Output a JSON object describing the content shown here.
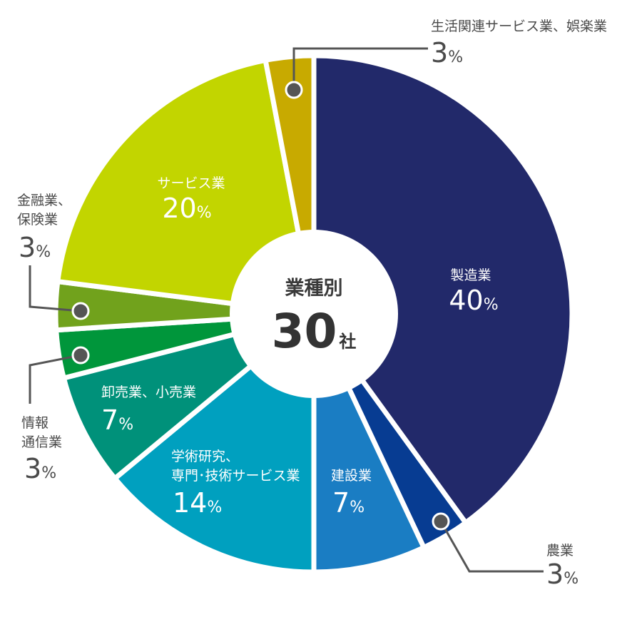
{
  "chart_data": {
    "type": "pie",
    "center": {
      "title": "業種別",
      "value": "30",
      "unit": "社"
    },
    "slices": [
      {
        "name": "製造業",
        "value": 40,
        "color": "#22296a"
      },
      {
        "name": "農業",
        "value": 3,
        "color": "#073c92"
      },
      {
        "name": "建設業",
        "value": 7,
        "color": "#1a7dc3"
      },
      {
        "name": "学術研究、専門・技術サービス業",
        "value": 14,
        "color": "#00a0bf"
      },
      {
        "name": "卸売業、小売業",
        "value": 7,
        "color": "#00917a"
      },
      {
        "name": "情報通信業",
        "value": 3,
        "color": "#00963b"
      },
      {
        "name": "金融業、保険業",
        "value": 3,
        "color": "#71a21c"
      },
      {
        "name": "サービス業",
        "value": 20,
        "color": "#c2d500"
      },
      {
        "name": "生活関連サービス業、娯楽業",
        "value": 3,
        "color": "#c8aa00"
      }
    ]
  },
  "labels": {
    "manufacturing": {
      "line1": "製造業",
      "pct": "40",
      "unit": "%"
    },
    "agriculture": {
      "line1": "農業",
      "pct": "3",
      "unit": "%"
    },
    "construction": {
      "line1": "建設業",
      "pct": "7",
      "unit": "%"
    },
    "academic": {
      "line1": "学術研究、",
      "line2": "専門･技術サービス業",
      "pct": "14",
      "unit": "%"
    },
    "wholesale": {
      "line1": "卸売業、小売業",
      "pct": "7",
      "unit": "%"
    },
    "it": {
      "line1": "情報",
      "line2": "通信業",
      "pct": "3",
      "unit": "%"
    },
    "finance": {
      "line1": "金融業、",
      "line2": "保険業",
      "pct": "3",
      "unit": "%"
    },
    "services": {
      "line1": "サービス業",
      "pct": "20",
      "unit": "%"
    },
    "lifestyle": {
      "line1": "生活関連サービス業、娯楽業",
      "pct": "3",
      "unit": "%"
    }
  }
}
